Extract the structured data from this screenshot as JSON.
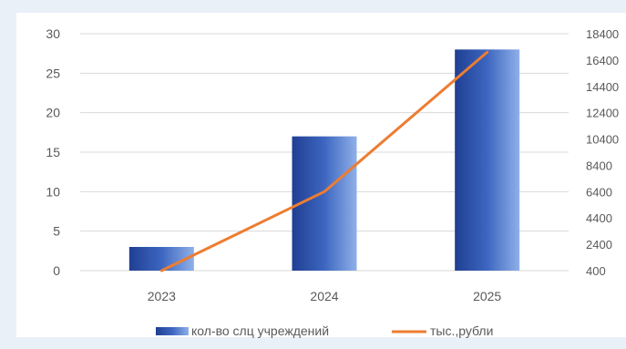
{
  "chart_data": {
    "type": "bar",
    "categories": [
      "2023",
      "2024",
      "2025"
    ],
    "series": [
      {
        "name": "кол-во слц учреждений",
        "type": "bar",
        "axis": "left",
        "values": [
          3,
          17,
          28
        ],
        "color": "#3a60b8"
      },
      {
        "name": "тыс.,рубли",
        "type": "line",
        "axis": "right",
        "values": [
          400,
          6400,
          17000
        ],
        "color": "#ed7d31"
      }
    ],
    "y_left": {
      "range": [
        0,
        30
      ],
      "ticks": [
        "0",
        "5",
        "10",
        "15",
        "20",
        "25",
        "30"
      ]
    },
    "y_right": {
      "range": [
        400,
        18400
      ],
      "ticks": [
        "400",
        "2400",
        "4400",
        "6400",
        "8400",
        "10400",
        "12400",
        "14400",
        "16400",
        "18400"
      ]
    },
    "grid": true,
    "legend_position": "bottom"
  }
}
